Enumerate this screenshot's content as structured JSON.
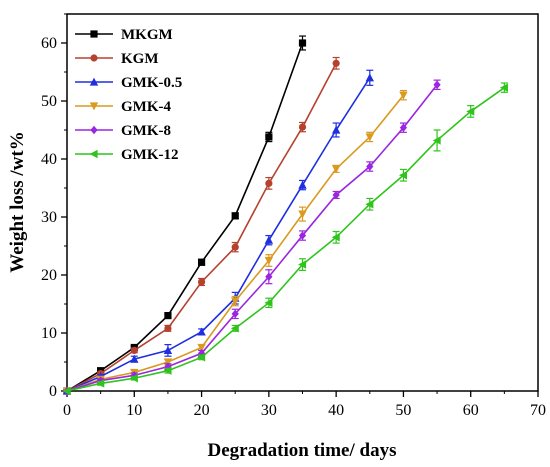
{
  "chart_data": {
    "type": "line",
    "title": "",
    "xlabel": "Degradation time/ days",
    "ylabel": "Weight loss /wt%",
    "xlim": [
      0,
      70
    ],
    "ylim": [
      0,
      65
    ],
    "xticks": [
      0,
      10,
      20,
      30,
      40,
      50,
      60,
      70
    ],
    "yticks": [
      0,
      10,
      20,
      30,
      40,
      50,
      60
    ],
    "xtick_labels": [
      "0",
      "10",
      "20",
      "30",
      "40",
      "50",
      "60",
      "70"
    ],
    "ytick_labels": [
      "0",
      "10",
      "20",
      "30",
      "40",
      "50",
      "60"
    ],
    "grid": false,
    "legend_position": "top-left",
    "series": [
      {
        "name": "MKGM",
        "color": "#000000",
        "marker": "square",
        "x": [
          0,
          5,
          10,
          15,
          20,
          25,
          30,
          35
        ],
        "y": [
          0,
          3.5,
          7.5,
          13,
          22.2,
          30.2,
          43.8,
          60
        ],
        "err": [
          0.2,
          0.3,
          0.3,
          0.4,
          0.5,
          0.5,
          0.8,
          1.2
        ]
      },
      {
        "name": "KGM",
        "color": "#b5412e",
        "marker": "circle",
        "x": [
          0,
          5,
          10,
          15,
          20,
          25,
          30,
          35,
          40
        ],
        "y": [
          0,
          3,
          7,
          10.8,
          18.8,
          24.8,
          35.8,
          45.5,
          56.5
        ],
        "err": [
          0.2,
          0.3,
          0.4,
          0.5,
          0.6,
          0.8,
          1.0,
          0.8,
          1.0
        ]
      },
      {
        "name": "GMK-0.5",
        "color": "#1f2fe0",
        "marker": "triangle-up",
        "x": [
          0,
          5,
          10,
          15,
          20,
          25,
          30,
          35,
          40,
          45
        ],
        "y": [
          0,
          2.5,
          5.5,
          7,
          10.2,
          16,
          26,
          35.5,
          45,
          54
        ],
        "err": [
          0.2,
          0.3,
          0.5,
          1.0,
          0.5,
          1.0,
          0.8,
          0.8,
          1.2,
          1.3
        ]
      },
      {
        "name": "GMK-4",
        "color": "#d99a1f",
        "marker": "triangle-down",
        "x": [
          0,
          5,
          10,
          15,
          20,
          25,
          30,
          35,
          40,
          45,
          50
        ],
        "y": [
          0,
          2,
          3.2,
          5,
          7.5,
          15.5,
          22.5,
          30.5,
          38.3,
          43.8,
          51
        ],
        "err": [
          0.2,
          0.3,
          0.4,
          0.5,
          0.5,
          0.8,
          1.0,
          1.2,
          0.6,
          0.8,
          0.8
        ]
      },
      {
        "name": "GMK-8",
        "color": "#9b26e0",
        "marker": "diamond",
        "x": [
          0,
          5,
          10,
          15,
          20,
          25,
          30,
          35,
          40,
          45,
          50,
          55
        ],
        "y": [
          0,
          1.8,
          2.7,
          4.2,
          6.5,
          13.3,
          19.7,
          26.8,
          33.8,
          38.7,
          45.4,
          52.8
        ],
        "err": [
          0.2,
          0.3,
          0.4,
          0.5,
          0.5,
          0.8,
          1.2,
          0.8,
          0.6,
          0.8,
          0.8,
          0.8
        ]
      },
      {
        "name": "GMK-12",
        "color": "#2fc41c",
        "marker": "triangle-left",
        "x": [
          0,
          5,
          10,
          15,
          20,
          25,
          30,
          35,
          40,
          45,
          50,
          55,
          60,
          65
        ],
        "y": [
          0,
          1.3,
          2.2,
          3.5,
          5.8,
          10.8,
          15.2,
          21.8,
          26.5,
          32.2,
          37.2,
          43.2,
          48.2,
          52.3
        ],
        "err": [
          0.2,
          0.3,
          0.3,
          0.4,
          0.4,
          0.5,
          0.8,
          1.0,
          1.0,
          1.0,
          1.0,
          1.8,
          1.0,
          0.8
        ]
      }
    ]
  }
}
